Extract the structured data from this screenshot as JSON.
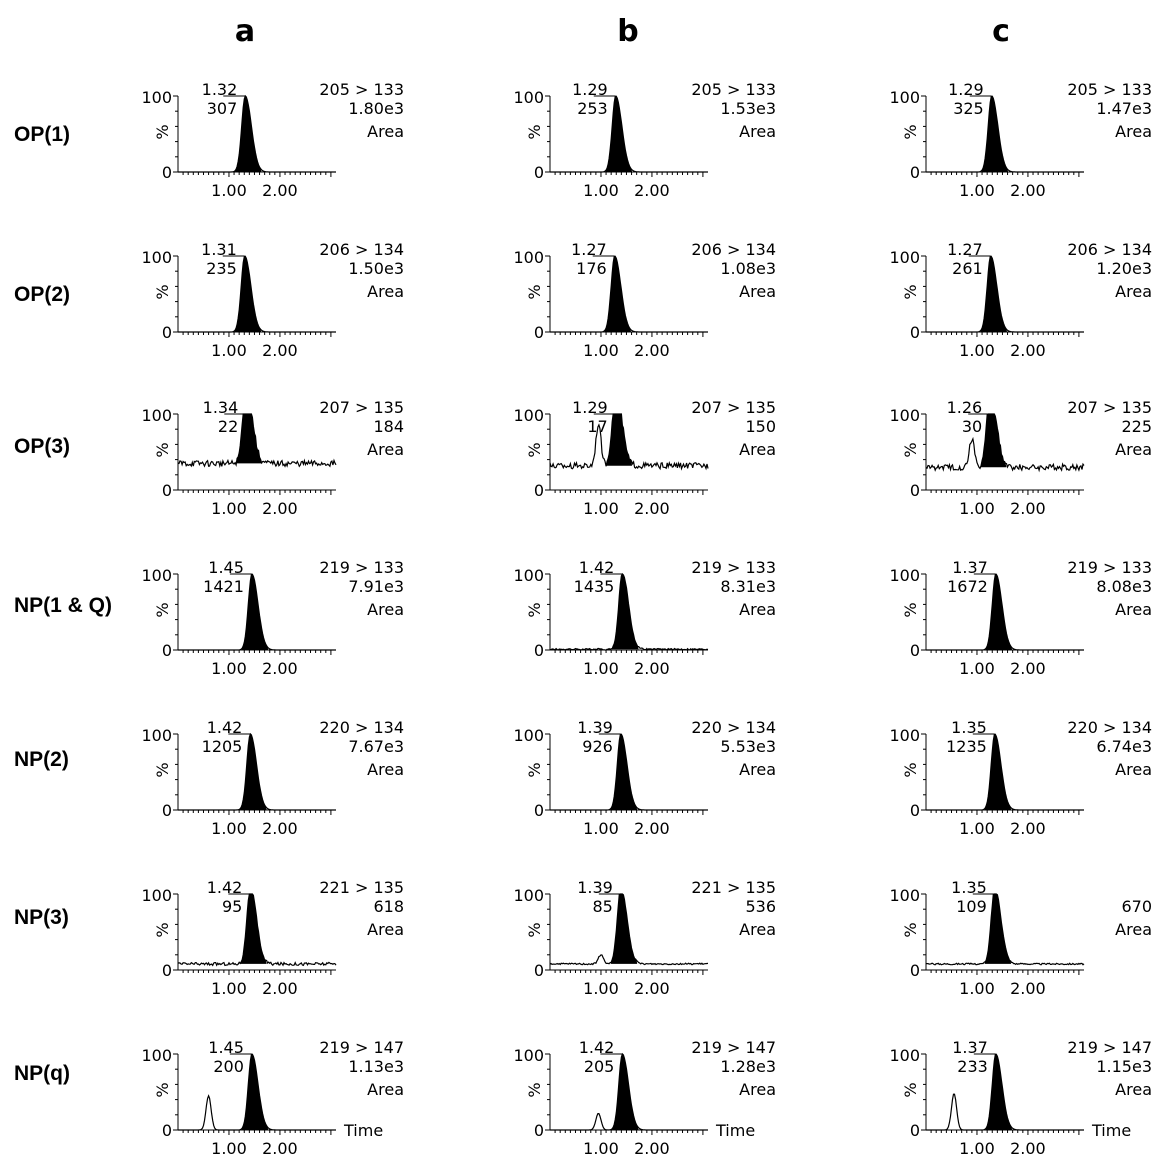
{
  "columns": [
    "a",
    "b",
    "c"
  ],
  "rows": [
    "OP(1)",
    "OP(2)",
    "OP(3)",
    "NP(1 & Q)",
    "NP(2)",
    "NP(3)",
    "NP(q)"
  ],
  "axis": {
    "y_top": "100",
    "y_bottom": "0",
    "y_unit": "%",
    "x_ticks": [
      "1.00",
      "2.00"
    ],
    "x_label": "Time"
  },
  "chart_data": {
    "type": "line",
    "description_note": "",
    "x_range": [
      0,
      3.1
    ],
    "y_range": [
      0,
      100
    ],
    "panels": [
      {
        "row": "OP(1)",
        "col": "a",
        "rt": "1.32",
        "height": "307",
        "transition": "205 > 133",
        "area": "1.80e3",
        "area_label": "Area",
        "baseline": 0,
        "noise": 0,
        "extra": null
      },
      {
        "row": "OP(1)",
        "col": "b",
        "rt": "1.29",
        "height": "253",
        "transition": "205 > 133",
        "area": "1.53e3",
        "area_label": "Area",
        "baseline": 0,
        "noise": 0,
        "extra": null
      },
      {
        "row": "OP(1)",
        "col": "c",
        "rt": "1.29",
        "height": "325",
        "transition": "205 > 133",
        "area": "1.47e3",
        "area_label": "Area",
        "baseline": 0,
        "noise": 0,
        "extra": null
      },
      {
        "row": "OP(2)",
        "col": "a",
        "rt": "1.31",
        "height": "235",
        "transition": "206 > 134",
        "area": "1.50e3",
        "area_label": "Area",
        "baseline": 0,
        "noise": 0,
        "extra": null
      },
      {
        "row": "OP(2)",
        "col": "b",
        "rt": "1.27",
        "height": "176",
        "transition": "206 > 134",
        "area": "1.08e3",
        "area_label": "Area",
        "baseline": 0,
        "noise": 0,
        "extra": null
      },
      {
        "row": "OP(2)",
        "col": "c",
        "rt": "1.27",
        "height": "261",
        "transition": "206 > 134",
        "area": "1.20e3",
        "area_label": "Area",
        "baseline": 0,
        "noise": 0,
        "extra": null
      },
      {
        "row": "OP(3)",
        "col": "a",
        "rt": "1.34",
        "height": "22",
        "transition": "207 > 135",
        "area": "184",
        "area_label": "Area",
        "baseline": 35,
        "noise": 4,
        "extra": null
      },
      {
        "row": "OP(3)",
        "col": "b",
        "rt": "1.29",
        "height": "17",
        "transition": "207 > 135",
        "area": "150",
        "area_label": "Area",
        "baseline": 32,
        "noise": 4,
        "extra": {
          "x": 0.95,
          "y": 55
        }
      },
      {
        "row": "OP(3)",
        "col": "c",
        "rt": "1.26",
        "height": "30",
        "transition": "207 > 135",
        "area": "225",
        "area_label": "Area",
        "baseline": 30,
        "noise": 4,
        "extra": {
          "x": 0.9,
          "y": 38
        }
      },
      {
        "row": "NP(1 & Q)",
        "col": "a",
        "rt": "1.45",
        "height": "1421",
        "transition": "219 > 133",
        "area": "7.91e3",
        "area_label": "Area",
        "baseline": 0,
        "noise": 0,
        "extra": null
      },
      {
        "row": "NP(1 & Q)",
        "col": "b",
        "rt": "1.42",
        "height": "1435",
        "transition": "219 > 133",
        "area": "8.31e3",
        "area_label": "Area",
        "baseline": 1,
        "noise": 1,
        "extra": null
      },
      {
        "row": "NP(1 & Q)",
        "col": "c",
        "rt": "1.37",
        "height": "1672",
        "transition": "219 > 133",
        "area": "8.08e3",
        "area_label": "Area",
        "baseline": 0,
        "noise": 0,
        "extra": null
      },
      {
        "row": "NP(2)",
        "col": "a",
        "rt": "1.42",
        "height": "1205",
        "transition": "220 > 134",
        "area": "7.67e3",
        "area_label": "Area",
        "baseline": 0,
        "noise": 0,
        "extra": null
      },
      {
        "row": "NP(2)",
        "col": "b",
        "rt": "1.39",
        "height": "926",
        "transition": "220 > 134",
        "area": "5.53e3",
        "area_label": "Area",
        "baseline": 0,
        "noise": 0,
        "extra": null
      },
      {
        "row": "NP(2)",
        "col": "c",
        "rt": "1.35",
        "height": "1235",
        "transition": "220 > 134",
        "area": "6.74e3",
        "area_label": "Area",
        "baseline": 0,
        "noise": 0,
        "extra": null
      },
      {
        "row": "NP(3)",
        "col": "a",
        "rt": "1.42",
        "height": "95",
        "transition": "221 > 135",
        "area": "618",
        "area_label": "Area",
        "baseline": 8,
        "noise": 2,
        "extra": null
      },
      {
        "row": "NP(3)",
        "col": "b",
        "rt": "1.39",
        "height": "85",
        "transition": "221 > 135",
        "area": "536",
        "area_label": "Area",
        "baseline": 8,
        "noise": 1,
        "extra": {
          "x": 1.0,
          "y": 12
        }
      },
      {
        "row": "NP(3)",
        "col": "c",
        "rt": "1.35",
        "height": "109",
        "transition": "",
        "area": "670",
        "area_label": "Area",
        "baseline": 8,
        "noise": 1,
        "extra": null
      },
      {
        "row": "NP(q)",
        "col": "a",
        "rt": "1.45",
        "height": "200",
        "transition": "219 > 147",
        "area": "1.13e3",
        "area_label": "Area",
        "baseline": 0,
        "noise": 0,
        "extra": {
          "x": 0.6,
          "y": 45
        }
      },
      {
        "row": "NP(q)",
        "col": "b",
        "rt": "1.42",
        "height": "205",
        "transition": "219 > 147",
        "area": "1.28e3",
        "area_label": "Area",
        "baseline": 0,
        "noise": 0,
        "extra": {
          "x": 0.95,
          "y": 22
        }
      },
      {
        "row": "NP(q)",
        "col": "c",
        "rt": "1.37",
        "height": "233",
        "transition": "219 > 147",
        "area": "1.15e3",
        "area_label": "Area",
        "baseline": 0,
        "noise": 0,
        "extra": {
          "x": 0.55,
          "y": 48
        }
      }
    ]
  }
}
